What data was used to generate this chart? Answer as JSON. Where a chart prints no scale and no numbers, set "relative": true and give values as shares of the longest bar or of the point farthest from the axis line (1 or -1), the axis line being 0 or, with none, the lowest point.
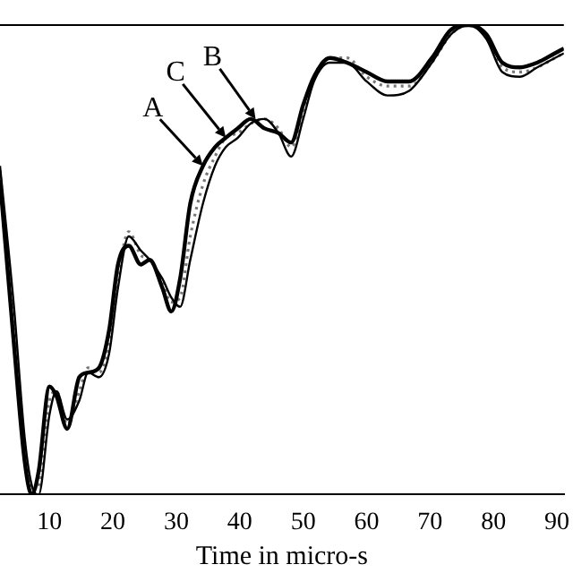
{
  "chart_data": {
    "type": "line",
    "relative": true,
    "xlabel": "Time in micro-s",
    "xlim": [
      2.2,
      91.1
    ],
    "xticks": [
      10,
      20,
      30,
      40,
      50,
      60,
      70,
      80,
      90
    ],
    "grid": false,
    "legend": false,
    "marker": "none",
    "x": [
      2.2,
      4.4,
      6.1,
      7.2,
      8.3,
      10,
      11.1,
      12.8,
      14.7,
      16.1,
      17.8,
      19.4,
      20.8,
      22.5,
      24.4,
      25.8,
      27.8,
      29.2,
      30.6,
      32.2,
      34.2,
      36.1,
      37.8,
      39.7,
      41.7,
      43.9,
      46.1,
      48.1,
      50,
      51.7,
      54.2,
      56.9,
      60,
      63.3,
      66.7,
      70.3,
      73.3,
      76.1,
      78.9,
      81.4,
      84.2,
      86.9,
      89.7,
      91.1
    ],
    "series": [
      {
        "color": "#000000",
        "line_style": "solid",
        "values": [
          0.67,
          0.32,
          0.07,
          0,
          0.05,
          0.23,
          0.21,
          0.14,
          0.25,
          0.26,
          0.27,
          0.35,
          0.49,
          0.53,
          0.49,
          0.5,
          0.44,
          0.39,
          0.46,
          0.62,
          0.7,
          0.74,
          0.76,
          0.78,
          0.8,
          0.78,
          0.77,
          0.75,
          0.83,
          0.89,
          0.93,
          0.92,
          0.9,
          0.88,
          0.88,
          0.93,
          0.99,
          1,
          0.98,
          0.92,
          0.91,
          0.92,
          0.94,
          0.95
        ]
      },
      {
        "color": "#000000",
        "line_style": "solid",
        "values": [
          0.7,
          0.4,
          0.12,
          0.02,
          0,
          0.17,
          0.22,
          0.16,
          0.2,
          0.26,
          0.25,
          0.3,
          0.44,
          0.55,
          0.52,
          0.5,
          0.46,
          0.42,
          0.4,
          0.5,
          0.62,
          0.7,
          0.74,
          0.76,
          0.79,
          0.8,
          0.77,
          0.72,
          0.8,
          0.88,
          0.92,
          0.92,
          0.88,
          0.85,
          0.86,
          0.92,
          0.98,
          1,
          0.97,
          0.9,
          0.89,
          0.91,
          0.93,
          0.94
        ]
      },
      {
        "color": "#777777",
        "line_style": "dotted",
        "values": [
          0.69,
          0.36,
          0.1,
          0.01,
          0.02,
          0.2,
          0.22,
          0.15,
          0.22,
          0.27,
          0.26,
          0.32,
          0.46,
          0.56,
          0.51,
          0.5,
          0.45,
          0.41,
          0.42,
          0.55,
          0.66,
          0.72,
          0.76,
          0.77,
          0.79,
          0.8,
          0.78,
          0.74,
          0.81,
          0.89,
          0.93,
          0.93,
          0.89,
          0.87,
          0.87,
          0.92,
          0.98,
          1,
          0.98,
          0.91,
          0.9,
          0.91,
          0.93,
          0.94
        ]
      }
    ],
    "annotations": [
      {
        "text": "A",
        "x": 34.2,
        "y": 0.7
      },
      {
        "text": "C",
        "x": 37.8,
        "y": 0.76
      },
      {
        "text": "B",
        "x": 42.5,
        "y": 0.8
      }
    ]
  }
}
